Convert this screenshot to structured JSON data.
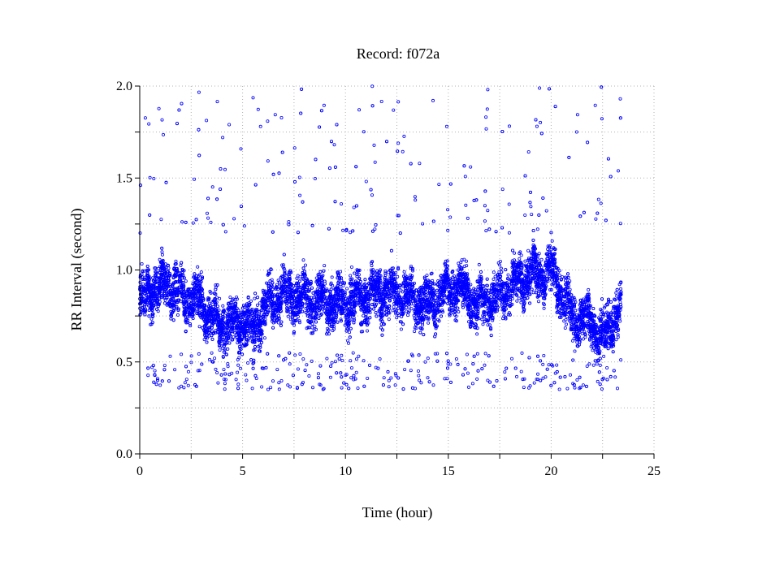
{
  "chart_data": {
    "type": "scatter",
    "title": "Record:  f072a",
    "xlabel": "Time (hour)",
    "ylabel": "RR Interval (second)",
    "xlim": [
      0,
      25
    ],
    "ylim": [
      0.0,
      2.0
    ],
    "x_ticks": [
      "0",
      "5",
      "10",
      "15",
      "20",
      "25"
    ],
    "y_ticks": [
      "0.0",
      "0.5",
      "1.0",
      "1.5",
      "2.0"
    ],
    "x_minor_step": 2.5,
    "y_minor_step": 0.25,
    "grid": true,
    "legend": "none",
    "marker": "small-open-circle",
    "series_color": "#0000ff",
    "series": [
      {
        "trend": {
          "x": [
            0,
            0.5,
            1,
            1.5,
            2,
            2.5,
            3,
            3.5,
            4,
            4.5,
            5,
            5.5,
            6,
            6.5,
            7,
            7.5,
            8,
            8.5,
            9,
            9.5,
            10,
            10.5,
            11,
            11.5,
            12,
            12.5,
            13,
            13.5,
            14,
            14.5,
            15,
            15.5,
            16,
            16.5,
            17,
            17.5,
            18,
            18.5,
            19,
            19.5,
            20,
            20.5,
            21,
            21.5,
            22,
            22.5,
            23,
            23.4
          ],
          "y": [
            0.82,
            0.88,
            0.9,
            0.92,
            0.86,
            0.85,
            0.82,
            0.74,
            0.7,
            0.7,
            0.72,
            0.68,
            0.78,
            0.84,
            0.87,
            0.85,
            0.86,
            0.82,
            0.84,
            0.8,
            0.82,
            0.84,
            0.85,
            0.87,
            0.88,
            0.88,
            0.86,
            0.84,
            0.8,
            0.86,
            0.9,
            0.92,
            0.86,
            0.8,
            0.84,
            0.86,
            0.9,
            0.96,
            0.96,
            0.98,
            1.0,
            0.9,
            0.75,
            0.72,
            0.72,
            0.62,
            0.74,
            0.8
          ]
        },
        "spread_band": [
          0.6,
          1.1
        ],
        "point_count_approx": 9000,
        "outlier_ranges": [
          [
            0.35,
            0.55
          ],
          [
            1.2,
            2.0
          ]
        ]
      }
    ]
  }
}
